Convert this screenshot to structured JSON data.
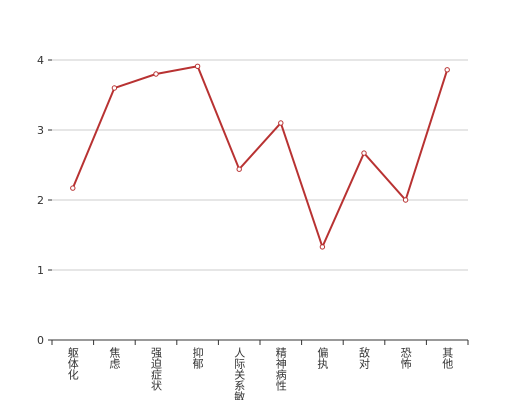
{
  "chart_data": {
    "type": "line",
    "categories": [
      "躯体化",
      "焦虑",
      "强迫症状",
      "抑郁",
      "人际关系敏感",
      "精神病性",
      "偏执",
      "敌对",
      "恐怖",
      "其他"
    ],
    "values": [
      2.17,
      3.6,
      3.8,
      3.91,
      2.44,
      3.1,
      1.33,
      2.67,
      2.0,
      3.86
    ],
    "color": "#b83232",
    "ylim": [
      0,
      4
    ],
    "yticks": [
      0,
      1,
      2,
      3,
      4
    ],
    "grid": true
  }
}
